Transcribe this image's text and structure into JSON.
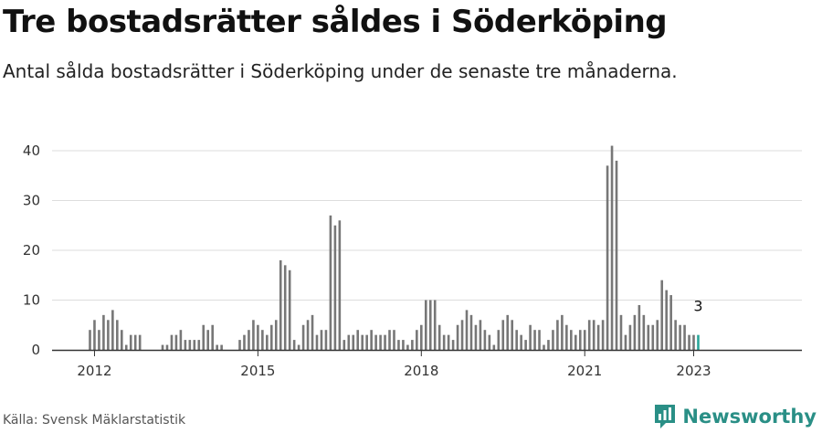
{
  "title": "Tre bostadsrätter såldes i Söderköping",
  "subtitle": "Antal sålda bostadsrätter i Söderköping under de senaste tre månaderna.",
  "source": "Källa: Svensk Mäklarstatistik",
  "brand": "Newsworthy",
  "colors": {
    "bar": "#777777",
    "highlight": "#2aa69a",
    "grid": "#dddddd",
    "axis": "#333333",
    "brand": "#2a8f86"
  },
  "chart_data": {
    "type": "bar",
    "title": "Tre bostadsrätter såldes i Söderköping",
    "subtitle": "Antal sålda bostadsrätter i Söderköping under de senaste tre månaderna.",
    "xlabel": "",
    "ylabel": "",
    "ylim": [
      0,
      44
    ],
    "yticks": [
      0,
      10,
      20,
      30,
      40
    ],
    "grid": true,
    "legend": "none",
    "unit": "quarterly (rolling three-month totals), monthly bars",
    "start": "2011-12",
    "xticks": [
      {
        "label": "2012",
        "date": "2012-01"
      },
      {
        "label": "2015",
        "date": "2015-01"
      },
      {
        "label": "2018",
        "date": "2018-01"
      },
      {
        "label": "2021",
        "date": "2021-01"
      },
      {
        "label": "2023",
        "date": "2023-01"
      }
    ],
    "values": [
      4,
      6,
      4,
      7,
      6,
      8,
      6,
      4,
      1,
      3,
      3,
      3,
      null,
      null,
      null,
      null,
      1,
      1,
      3,
      3,
      4,
      2,
      2,
      2,
      2,
      5,
      4,
      5,
      1,
      1,
      null,
      null,
      null,
      2,
      3,
      4,
      6,
      5,
      4,
      3,
      5,
      6,
      18,
      17,
      16,
      2,
      1,
      5,
      6,
      7,
      3,
      4,
      4,
      27,
      25,
      26,
      2,
      3,
      3,
      4,
      3,
      3,
      4,
      3,
      3,
      3,
      4,
      4,
      2,
      2,
      1,
      2,
      4,
      5,
      10,
      10,
      10,
      5,
      3,
      3,
      2,
      5,
      6,
      8,
      7,
      5,
      6,
      4,
      3,
      1,
      4,
      6,
      7,
      6,
      4,
      3,
      2,
      5,
      4,
      4,
      1,
      2,
      4,
      6,
      7,
      5,
      4,
      3,
      4,
      4,
      6,
      6,
      5,
      6,
      37,
      41,
      38,
      7,
      3,
      5,
      7,
      9,
      7,
      5,
      5,
      6,
      14,
      12,
      11,
      6,
      5,
      5,
      3,
      3,
      3
    ],
    "highlight_index": 134,
    "annotations": [
      {
        "text": "3",
        "date": "2023-02",
        "value": 3
      }
    ]
  }
}
